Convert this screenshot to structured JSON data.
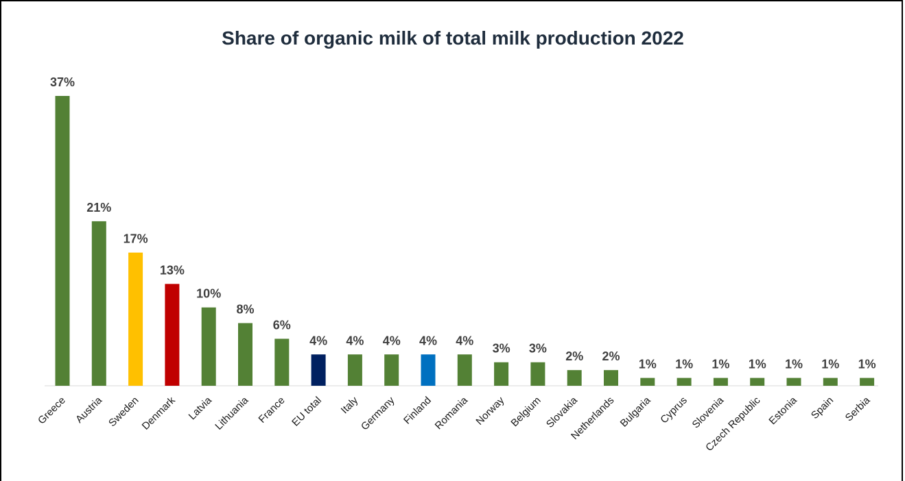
{
  "chart_data": {
    "type": "bar",
    "title": "Share of organic milk of total milk production 2022",
    "xlabel": "",
    "ylabel": "",
    "ylim": [
      0,
      37
    ],
    "grid": false,
    "legend": "none",
    "categories": [
      "Greece",
      "Austria",
      "Sweden",
      "Denmark",
      "Latvia",
      "Lithuania",
      "France",
      "EU total",
      "Italy",
      "Germany",
      "Finland",
      "Romania",
      "Norway",
      "Belgium",
      "Slovakia",
      "Netherlands",
      "Bulgaria",
      "Cyprus",
      "Slovenia",
      "Czech Republic",
      "Estonia",
      "Spain",
      "Serbia"
    ],
    "values": [
      37,
      21,
      17,
      13,
      10,
      8,
      6,
      4,
      4,
      4,
      4,
      4,
      3,
      3,
      2,
      2,
      1,
      1,
      1,
      1,
      1,
      1,
      1
    ],
    "value_labels": [
      "37%",
      "21%",
      "17%",
      "13%",
      "10%",
      "8%",
      "6%",
      "4%",
      "4%",
      "4%",
      "4%",
      "4%",
      "3%",
      "3%",
      "2%",
      "2%",
      "1%",
      "1%",
      "1%",
      "1%",
      "1%",
      "1%",
      "1%"
    ],
    "colors": [
      "#538135",
      "#538135",
      "#ffc000",
      "#c00000",
      "#538135",
      "#538135",
      "#538135",
      "#002060",
      "#538135",
      "#538135",
      "#0070c0",
      "#538135",
      "#538135",
      "#538135",
      "#538135",
      "#538135",
      "#538135",
      "#538135",
      "#538135",
      "#538135",
      "#538135",
      "#538135",
      "#538135"
    ]
  }
}
